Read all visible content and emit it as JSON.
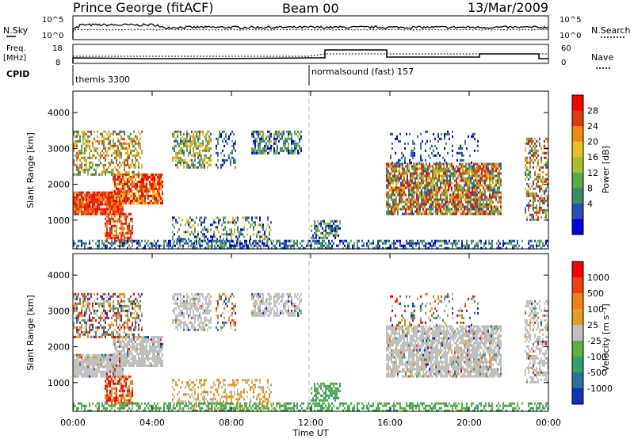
{
  "header": {
    "station": "Prince George (fitACF)",
    "beam": "Beam 00",
    "date": "13/Mar/2009"
  },
  "top_panels": {
    "nsky_label": "N.Sky",
    "nsearch_label": "N.Search",
    "nsky_ticks": [
      "10^5",
      "10^0"
    ],
    "nsearch_ticks": [
      "10^5",
      "10^0"
    ],
    "freq_label_1": "Freq.",
    "freq_label_2": "[MHz]",
    "freq_ticks": [
      "18",
      "8"
    ],
    "nave_label": "Nave",
    "nave_ticks": [
      "60",
      "0"
    ],
    "cpid_label": "CPID",
    "cpid_1": "themis 3300",
    "cpid_2": "normalsound (fast) 157"
  },
  "chart_data": [
    {
      "type": "heatmap",
      "name": "power",
      "ylabel": "Slant Range [km]",
      "ylim": [
        200,
        4600
      ],
      "yticks": [
        1000,
        2000,
        3000,
        4000
      ],
      "colorbar_label": "Power [dB]",
      "colorbar_ticks": [
        "28",
        "24",
        "20",
        "16",
        "12",
        "8",
        "4"
      ],
      "colors": [
        "#0000dd",
        "#2a4dc0",
        "#3a8a6a",
        "#5aaa4a",
        "#a8c030",
        "#e8c020",
        "#f08a10",
        "#e03a10",
        "#ff0000"
      ]
    },
    {
      "type": "heatmap",
      "name": "velocity",
      "ylabel": "Slant Range [km]",
      "ylim": [
        200,
        4600
      ],
      "yticks": [
        1000,
        2000,
        3000,
        4000
      ],
      "colorbar_label": "Velocity [m s⁻¹]",
      "colorbar_ticks": [
        "1000",
        "500",
        "100",
        "25",
        "-25",
        "-100",
        "-500",
        "-1000"
      ],
      "colors": [
        "#1030c0",
        "#2a70a0",
        "#30a070",
        "#60b040",
        "#c0c0c0",
        "#e0a020",
        "#f08010",
        "#f04010",
        "#ff0000"
      ],
      "xlabel": "Time UT",
      "xticks": [
        "00:00",
        "04:00",
        "08:00",
        "12:00",
        "16:00",
        "20:00",
        "00:00"
      ]
    }
  ]
}
